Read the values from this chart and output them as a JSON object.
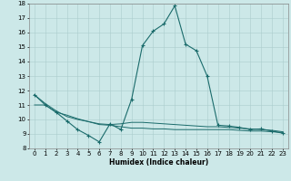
{
  "xlabel": "Humidex (Indice chaleur)",
  "xlim": [
    -0.5,
    23.5
  ],
  "ylim": [
    8,
    18
  ],
  "yticks": [
    8,
    9,
    10,
    11,
    12,
    13,
    14,
    15,
    16,
    17,
    18
  ],
  "xticks": [
    0,
    1,
    2,
    3,
    4,
    5,
    6,
    7,
    8,
    9,
    10,
    11,
    12,
    13,
    14,
    15,
    16,
    17,
    18,
    19,
    20,
    21,
    22,
    23
  ],
  "bg_color": "#cce8e8",
  "line_color": "#1a6b6b",
  "line1_x": [
    0,
    1,
    2,
    3,
    4,
    5,
    6,
    7,
    8,
    9,
    10,
    11,
    12,
    13,
    14,
    15,
    16,
    17,
    18,
    19,
    20,
    21,
    22,
    23
  ],
  "line1_y": [
    11.7,
    11.0,
    10.5,
    9.9,
    9.3,
    8.9,
    8.45,
    9.7,
    9.3,
    11.4,
    15.1,
    16.1,
    16.6,
    17.85,
    15.2,
    14.75,
    13.0,
    9.6,
    9.55,
    9.45,
    9.3,
    9.35,
    9.2,
    9.05
  ],
  "line2_x": [
    0,
    1,
    2,
    3,
    4,
    5,
    6,
    7,
    8,
    9,
    10,
    11,
    12,
    13,
    14,
    15,
    16,
    17,
    18,
    19,
    20,
    21,
    22,
    23
  ],
  "line2_y": [
    11.7,
    11.1,
    10.6,
    10.2,
    10.0,
    9.85,
    9.7,
    9.65,
    9.7,
    9.8,
    9.8,
    9.75,
    9.7,
    9.65,
    9.6,
    9.55,
    9.5,
    9.5,
    9.45,
    9.4,
    9.35,
    9.3,
    9.25,
    9.15
  ],
  "line3_x": [
    0,
    1,
    2,
    3,
    4,
    5,
    6,
    7,
    8,
    9,
    10,
    11,
    12,
    13,
    14,
    15,
    16,
    17,
    18,
    19,
    20,
    21,
    22,
    23
  ],
  "line3_y": [
    11.0,
    11.0,
    10.5,
    10.3,
    10.05,
    9.85,
    9.65,
    9.6,
    9.5,
    9.4,
    9.4,
    9.35,
    9.35,
    9.3,
    9.3,
    9.3,
    9.3,
    9.3,
    9.3,
    9.25,
    9.2,
    9.2,
    9.15,
    9.1
  ]
}
